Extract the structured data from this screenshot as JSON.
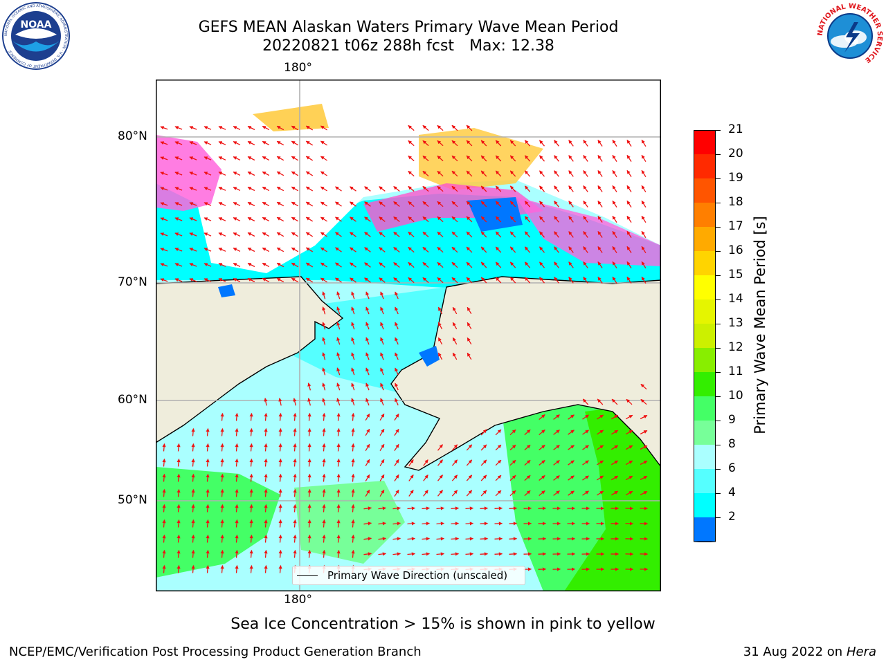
{
  "header": {
    "title_line1": "GEFS MEAN Alaskan Waters Primary Wave Mean Period",
    "title_line2_date": "20220821 t06z 288h fcst",
    "title_line2_max": "Max: 12.38"
  },
  "logos": {
    "noaa_text": "NOAA",
    "noaa_ring_text": "NATIONAL OCEANIC AND ATMOSPHERIC ADMINISTRATION · U.S. DEPARTMENT OF COMMERCE",
    "nws_ring_text": "NATIONAL WEATHER SERVICE"
  },
  "map": {
    "lon_label_top": "180°",
    "lon_label_bottom": "180°",
    "lat_labels": [
      "80°N",
      "70°N",
      "60°N",
      "50°N"
    ],
    "legend_text": "Primary Wave Direction (unscaled)",
    "colors": {
      "land": "#efeddc",
      "gridline": "#b0b0b0",
      "arrow": "#ee1111",
      "no_data": "#ffffff"
    }
  },
  "colorbar": {
    "label": "Primary Wave Mean Period [s]",
    "ticks": [
      "21",
      "20",
      "19",
      "18",
      "17",
      "16",
      "15",
      "14",
      "13",
      "12",
      "11",
      "10",
      "9",
      "8",
      "6",
      "4",
      "2"
    ],
    "extend_color": "#0000ff",
    "bins_top_to_bottom": [
      "#ff0000",
      "#ff2a00",
      "#ff5500",
      "#ff7f00",
      "#ffaa00",
      "#ffd400",
      "#ffff00",
      "#e5f500",
      "#ccf000",
      "#88ee00",
      "#33ee00",
      "#44ff66",
      "#77ff99",
      "#aaffff",
      "#55ffff",
      "#00ffff",
      "#0077ff"
    ]
  },
  "footer": {
    "note": "Sea Ice Concentration > 15% is shown in pink to yellow",
    "branch": "NCEP/EMC/Verification Post Processing Product Generation Branch",
    "date": "31 Aug 2022 on",
    "host": "Hera"
  }
}
